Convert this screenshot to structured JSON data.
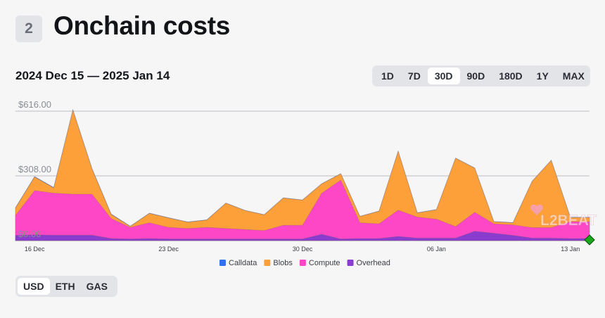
{
  "header": {
    "section_number": "2",
    "title": "Onchain costs"
  },
  "date_range": "2024 Dec 15 — 2025 Jan 14",
  "range_tabs": [
    {
      "label": "1D",
      "active": false
    },
    {
      "label": "7D",
      "active": false
    },
    {
      "label": "30D",
      "active": true
    },
    {
      "label": "90D",
      "active": false
    },
    {
      "label": "180D",
      "active": false
    },
    {
      "label": "1Y",
      "active": false
    },
    {
      "label": "MAX",
      "active": false
    }
  ],
  "unit_tabs": [
    {
      "label": "USD",
      "active": true
    },
    {
      "label": "ETH",
      "active": false
    },
    {
      "label": "GAS",
      "active": false
    }
  ],
  "watermark": "L2BEAT",
  "colors": {
    "calldata": "#2f6ff0",
    "blobs": "#fda03a",
    "compute": "#fe47c6",
    "overhead": "#8a3ccf",
    "grid": "#bdbfc6",
    "marker": "#19a81c"
  },
  "chart_data": {
    "type": "area",
    "stacked": true,
    "x": [
      "2024-12-15",
      "2024-12-16",
      "2024-12-17",
      "2024-12-18",
      "2024-12-19",
      "2024-12-20",
      "2024-12-21",
      "2024-12-22",
      "2024-12-23",
      "2024-12-24",
      "2024-12-25",
      "2024-12-26",
      "2024-12-27",
      "2024-12-28",
      "2024-12-29",
      "2024-12-30",
      "2024-12-31",
      "2025-01-01",
      "2025-01-02",
      "2025-01-03",
      "2025-01-04",
      "2025-01-05",
      "2025-01-06",
      "2025-01-07",
      "2025-01-08",
      "2025-01-09",
      "2025-01-10",
      "2025-01-11",
      "2025-01-12",
      "2025-01-13",
      "2025-01-14"
    ],
    "series": [
      {
        "name": "Calldata",
        "color": "#2f6ff0",
        "values": [
          2,
          2,
          2,
          2,
          2,
          2,
          1,
          1,
          1,
          1,
          1,
          1,
          1,
          1,
          1,
          1,
          1,
          1,
          1,
          1,
          1,
          1,
          1,
          1,
          1,
          1,
          1,
          1,
          1,
          1,
          1
        ]
      },
      {
        "name": "Blobs",
        "color": "#fda03a",
        "values": [
          35,
          65,
          25,
          400,
          120,
          20,
          5,
          45,
          45,
          30,
          35,
          120,
          90,
          75,
          130,
          120,
          45,
          30,
          30,
          60,
          280,
          20,
          45,
          325,
          210,
          10,
          10,
          220,
          320,
          20,
          20
        ]
      },
      {
        "name": "Compute",
        "color": "#fe47c6",
        "values": [
          95,
          210,
          200,
          195,
          195,
          95,
          55,
          75,
          55,
          50,
          55,
          50,
          45,
          40,
          65,
          65,
          195,
          280,
          75,
          70,
          125,
          100,
          90,
          55,
          90,
          45,
          50,
          50,
          50,
          80,
          80
        ]
      },
      {
        "name": "Overhead",
        "color": "#8a3ccf",
        "values": [
          25,
          28,
          26,
          26,
          26,
          10,
          8,
          10,
          8,
          8,
          8,
          8,
          8,
          8,
          8,
          8,
          30,
          8,
          10,
          10,
          20,
          12,
          12,
          12,
          45,
          35,
          25,
          12,
          12,
          10,
          10
        ]
      }
    ],
    "x_ticks": [
      {
        "x": "2024-12-16",
        "label": "16 Dec"
      },
      {
        "x": "2024-12-23",
        "label": "23 Dec"
      },
      {
        "x": "2024-12-30",
        "label": "30 Dec"
      },
      {
        "x": "2025-01-06",
        "label": "06 Jan"
      },
      {
        "x": "2025-01-13",
        "label": "13 Jan"
      }
    ],
    "y_ticks": [
      {
        "value": 0,
        "label": "$0.00"
      },
      {
        "value": 308,
        "label": "$308.00"
      },
      {
        "value": 616,
        "label": "$616.00"
      }
    ],
    "ylim": [
      0,
      616
    ],
    "grid": true,
    "legend_position": "bottom"
  }
}
